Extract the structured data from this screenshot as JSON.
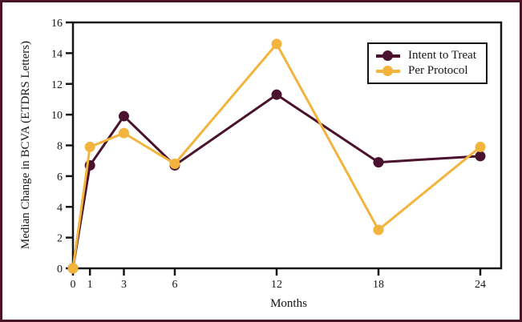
{
  "chart_data": {
    "type": "line",
    "title": "",
    "xlabel": "Months",
    "ylabel": "Median Change in BCVA (ETDRS Letters)",
    "x": [
      0,
      1,
      3,
      6,
      12,
      18,
      24
    ],
    "x_ticks": [
      0,
      1,
      3,
      6,
      12,
      18,
      24
    ],
    "y_ticks": [
      0,
      2,
      4,
      6,
      8,
      10,
      12,
      14,
      16
    ],
    "xlim": [
      0,
      25.2
    ],
    "ylim": [
      0,
      16
    ],
    "grid": false,
    "legend_position": "top-right",
    "series": [
      {
        "name": "Intent to Treat",
        "color": "#4a122c",
        "values": [
          0,
          6.7,
          9.9,
          6.7,
          11.3,
          6.9,
          7.3
        ]
      },
      {
        "name": "Per Protocol",
        "color": "#f2b43c",
        "values": [
          0,
          7.9,
          8.8,
          6.8,
          14.6,
          2.5,
          7.9
        ]
      }
    ],
    "axis_color": "#161616",
    "frame_color": "#4a1427",
    "background_color": "#ffffff"
  }
}
